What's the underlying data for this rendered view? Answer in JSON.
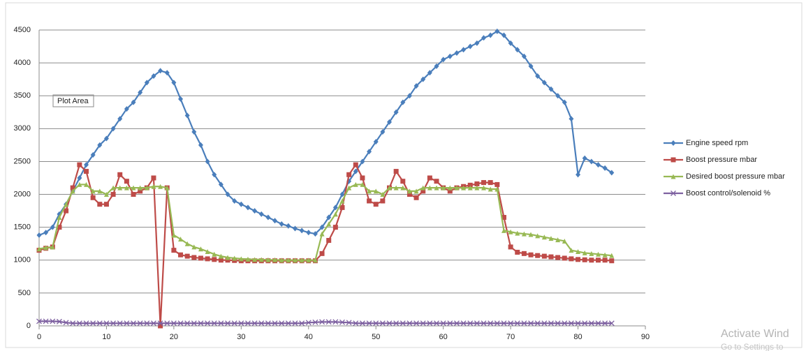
{
  "chart_data": {
    "type": "line",
    "x": [
      0,
      1,
      2,
      3,
      4,
      5,
      6,
      7,
      8,
      9,
      10,
      11,
      12,
      13,
      14,
      15,
      16,
      17,
      18,
      19,
      20,
      21,
      22,
      23,
      24,
      25,
      26,
      27,
      28,
      29,
      30,
      31,
      32,
      33,
      34,
      35,
      36,
      37,
      38,
      39,
      40,
      41,
      42,
      43,
      44,
      45,
      46,
      47,
      48,
      49,
      50,
      51,
      52,
      53,
      54,
      55,
      56,
      57,
      58,
      59,
      60,
      61,
      62,
      63,
      64,
      65,
      66,
      67,
      68,
      69,
      70,
      71,
      72,
      73,
      74,
      75,
      76,
      77,
      78,
      79,
      80,
      81,
      82,
      83,
      84,
      85
    ],
    "series": [
      {
        "name": "Engine speed rpm",
        "color": "#4a7ebb",
        "marker": "diamond",
        "values": [
          1380,
          1420,
          1500,
          1700,
          1850,
          2050,
          2250,
          2450,
          2600,
          2750,
          2850,
          3000,
          3150,
          3300,
          3400,
          3550,
          3700,
          3800,
          3880,
          3850,
          3700,
          3450,
          3200,
          2950,
          2750,
          2500,
          2300,
          2150,
          2000,
          1900,
          1850,
          1800,
          1750,
          1700,
          1650,
          1600,
          1550,
          1520,
          1480,
          1450,
          1420,
          1400,
          1500,
          1650,
          1800,
          2000,
          2200,
          2350,
          2500,
          2650,
          2800,
          2950,
          3100,
          3250,
          3400,
          3500,
          3650,
          3750,
          3850,
          3950,
          4050,
          4100,
          4150,
          4200,
          4250,
          4300,
          4380,
          4420,
          4480,
          4420,
          4300,
          4200,
          4100,
          3950,
          3800,
          3700,
          3600,
          3500,
          3400,
          3150,
          2300,
          2550,
          2500,
          2450,
          2400,
          2330
        ]
      },
      {
        "name": "Boost pressure mbar",
        "color": "#be4b48",
        "marker": "square",
        "values": [
          1150,
          1180,
          1200,
          1500,
          1750,
          2100,
          2450,
          2350,
          1950,
          1850,
          1850,
          2000,
          2300,
          2200,
          2000,
          2050,
          2100,
          2250,
          0,
          2100,
          1150,
          1080,
          1060,
          1040,
          1030,
          1020,
          1010,
          1000,
          1000,
          995,
          990,
          990,
          990,
          990,
          990,
          990,
          990,
          990,
          990,
          990,
          990,
          990,
          1100,
          1300,
          1500,
          1800,
          2300,
          2450,
          2250,
          1900,
          1850,
          1900,
          2100,
          2350,
          2200,
          2000,
          1950,
          2050,
          2250,
          2200,
          2100,
          2050,
          2100,
          2120,
          2140,
          2160,
          2180,
          2180,
          2150,
          1650,
          1200,
          1120,
          1100,
          1080,
          1070,
          1060,
          1050,
          1040,
          1030,
          1020,
          1010,
          1005,
          1000,
          1000,
          1000,
          990
        ]
      },
      {
        "name": "Desired boost pressure mbar",
        "color": "#98b954",
        "marker": "triangle",
        "values": [
          1170,
          1190,
          1200,
          1650,
          1850,
          2050,
          2150,
          2150,
          2050,
          2050,
          2000,
          2100,
          2100,
          2100,
          2100,
          2100,
          2100,
          2120,
          2120,
          2100,
          1380,
          1320,
          1250,
          1200,
          1170,
          1130,
          1090,
          1060,
          1040,
          1030,
          1020,
          1015,
          1010,
          1010,
          1005,
          1005,
          1000,
          1000,
          1000,
          1000,
          1000,
          1000,
          1400,
          1550,
          1700,
          1900,
          2100,
          2150,
          2150,
          2050,
          2050,
          2000,
          2100,
          2100,
          2100,
          2050,
          2050,
          2100,
          2100,
          2100,
          2100,
          2100,
          2100,
          2100,
          2100,
          2100,
          2100,
          2080,
          2080,
          1450,
          1430,
          1410,
          1400,
          1390,
          1370,
          1350,
          1330,
          1310,
          1290,
          1150,
          1130,
          1110,
          1100,
          1090,
          1080,
          1070
        ]
      },
      {
        "name": "Boost control/solenoid %",
        "color": "#7d60a0",
        "marker": "x",
        "values": [
          70,
          70,
          70,
          65,
          50,
          40,
          40,
          40,
          40,
          40,
          40,
          40,
          40,
          40,
          40,
          40,
          40,
          40,
          40,
          40,
          40,
          40,
          40,
          40,
          40,
          40,
          40,
          40,
          40,
          40,
          40,
          40,
          40,
          40,
          40,
          40,
          40,
          40,
          40,
          40,
          50,
          55,
          60,
          60,
          60,
          55,
          50,
          40,
          40,
          40,
          40,
          40,
          40,
          40,
          40,
          40,
          40,
          40,
          40,
          40,
          40,
          40,
          40,
          40,
          40,
          40,
          40,
          40,
          40,
          40,
          40,
          40,
          40,
          40,
          40,
          40,
          40,
          40,
          40,
          40,
          40,
          40,
          40,
          40,
          40,
          40
        ]
      }
    ],
    "xlim": [
      0,
      90
    ],
    "xticks": [
      0,
      10,
      20,
      30,
      40,
      50,
      60,
      70,
      80,
      90
    ],
    "ylim": [
      0,
      4500
    ],
    "yticks": [
      0,
      500,
      1000,
      1500,
      2000,
      2500,
      3000,
      3500,
      4000,
      4500
    ],
    "grid": true,
    "legend": "right",
    "annotations": [
      "Plot Area",
      "Activate Wind",
      "Go to Settings to"
    ]
  }
}
